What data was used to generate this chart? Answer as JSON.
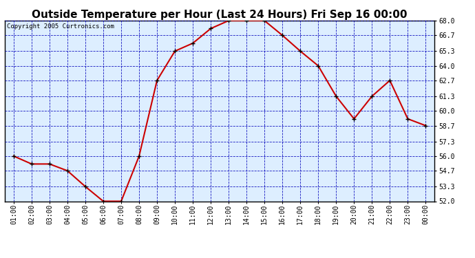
{
  "title": "Outside Temperature per Hour (Last 24 Hours) Fri Sep 16 00:00",
  "copyright": "Copyright 2005 Curtronics.com",
  "hours": [
    "01:00",
    "02:00",
    "03:00",
    "04:00",
    "05:00",
    "06:00",
    "07:00",
    "08:00",
    "09:00",
    "10:00",
    "11:00",
    "12:00",
    "13:00",
    "14:00",
    "15:00",
    "16:00",
    "17:00",
    "18:00",
    "19:00",
    "20:00",
    "21:00",
    "22:00",
    "23:00",
    "00:00"
  ],
  "temps": [
    56.0,
    55.3,
    55.3,
    54.7,
    53.3,
    52.0,
    52.0,
    56.0,
    62.7,
    65.3,
    66.0,
    67.3,
    68.0,
    68.0,
    68.0,
    66.7,
    65.3,
    64.0,
    61.3,
    59.3,
    61.3,
    62.7,
    59.3,
    58.7
  ],
  "ylim_min": 52.0,
  "ylim_max": 68.0,
  "yticks": [
    52.0,
    53.3,
    54.7,
    56.0,
    57.3,
    58.7,
    60.0,
    61.3,
    62.7,
    64.0,
    65.3,
    66.7,
    68.0
  ],
  "line_color": "#cc0000",
  "marker_color": "#000000",
  "grid_color": "#0000bb",
  "bg_color": "#ffffff",
  "plot_bg_color": "#ddeeff",
  "title_fontsize": 11,
  "copyright_fontsize": 6.5,
  "tick_fontsize": 7,
  "ytick_fontsize": 7
}
